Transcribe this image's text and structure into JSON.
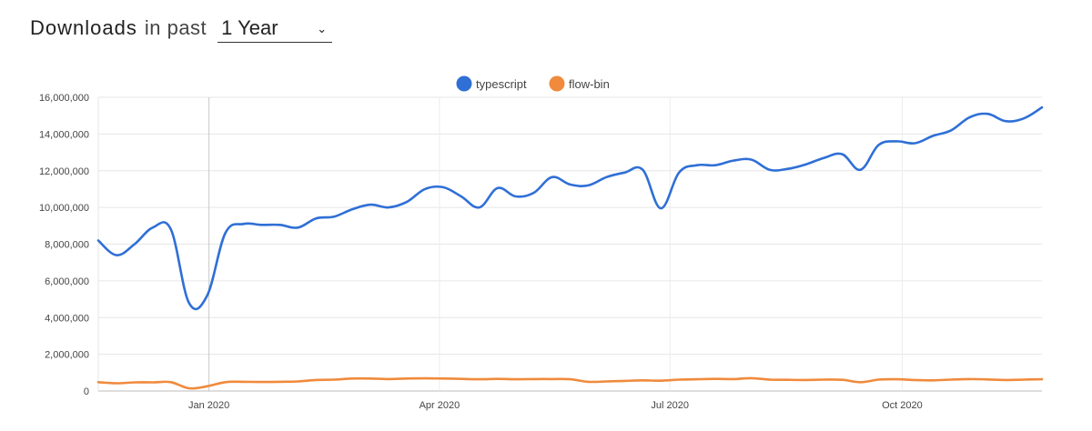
{
  "header": {
    "title": "Downloads",
    "subtitle": "in past",
    "range_selected": "1 Year"
  },
  "chart_data": {
    "type": "line",
    "title": "",
    "xlabel": "",
    "ylabel": "",
    "ylim": [
      0,
      16000000
    ],
    "y_ticks": [
      0,
      2000000,
      4000000,
      6000000,
      8000000,
      10000000,
      12000000,
      14000000,
      16000000
    ],
    "y_tick_labels": [
      "0",
      "2,000,000",
      "4,000,000",
      "6,000,000",
      "8,000,000",
      "10,000,000",
      "12,000,000",
      "14,000,000",
      "16,000,000"
    ],
    "x_range": [
      0,
      52
    ],
    "x_ticks": [
      {
        "week": 6.1,
        "label": "Jan 2020"
      },
      {
        "week": 18.8,
        "label": "Apr 2020"
      },
      {
        "week": 31.5,
        "label": "Jul 2020"
      },
      {
        "week": 44.3,
        "label": "Oct 2020"
      }
    ],
    "legend_position": "top-center",
    "series": [
      {
        "name": "typescript",
        "color": "#2f6fd6",
        "x": [
          0,
          1,
          2,
          3,
          4,
          5,
          6,
          7,
          8,
          9,
          10,
          11,
          12,
          13,
          14,
          15,
          16,
          17,
          18,
          19,
          20,
          21,
          22,
          23,
          24,
          25,
          26,
          27,
          28,
          29,
          30,
          31,
          32,
          33,
          34,
          35,
          36,
          37,
          38,
          39,
          40,
          41,
          42,
          43,
          44,
          45,
          46,
          47,
          48,
          49,
          50,
          51,
          52
        ],
        "values": [
          8200000,
          7400000,
          8000000,
          8900000,
          8800000,
          4800000,
          5200000,
          8600000,
          9100000,
          9050000,
          9050000,
          8900000,
          9400000,
          9500000,
          9900000,
          10150000,
          10000000,
          10300000,
          11000000,
          11100000,
          10600000,
          10000000,
          11050000,
          10600000,
          10800000,
          11650000,
          11250000,
          11200000,
          11650000,
          11900000,
          12050000,
          9950000,
          11900000,
          12300000,
          12300000,
          12550000,
          12600000,
          12050000,
          12100000,
          12350000,
          12700000,
          12900000,
          12050000,
          13400000,
          13600000,
          13500000,
          13900000,
          14200000,
          14900000,
          15100000,
          14700000,
          14850000,
          15450000
        ]
      },
      {
        "name": "flow-bin",
        "color": "#f08a3c",
        "x": [
          0,
          1,
          2,
          3,
          4,
          5,
          6,
          7,
          8,
          9,
          10,
          11,
          12,
          13,
          14,
          15,
          16,
          17,
          18,
          19,
          20,
          21,
          22,
          23,
          24,
          25,
          26,
          27,
          28,
          29,
          30,
          31,
          32,
          33,
          34,
          35,
          36,
          37,
          38,
          39,
          40,
          41,
          42,
          43,
          44,
          45,
          46,
          47,
          48,
          49,
          50,
          51,
          52
        ],
        "values": [
          480000,
          420000,
          470000,
          470000,
          480000,
          150000,
          260000,
          480000,
          500000,
          490000,
          500000,
          520000,
          600000,
          620000,
          680000,
          680000,
          650000,
          680000,
          690000,
          680000,
          660000,
          640000,
          660000,
          640000,
          650000,
          650000,
          640000,
          500000,
          520000,
          550000,
          580000,
          560000,
          620000,
          640000,
          660000,
          650000,
          700000,
          620000,
          610000,
          600000,
          620000,
          610000,
          480000,
          620000,
          640000,
          600000,
          580000,
          620000,
          650000,
          630000,
          600000,
          620000,
          640000
        ]
      }
    ]
  }
}
